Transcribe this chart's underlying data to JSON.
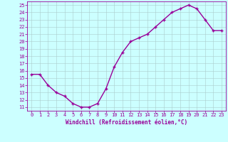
{
  "x": [
    0,
    1,
    2,
    3,
    4,
    5,
    6,
    7,
    8,
    9,
    10,
    11,
    12,
    13,
    14,
    15,
    16,
    17,
    18,
    19,
    20,
    21,
    22,
    23
  ],
  "y": [
    15.5,
    15.5,
    14,
    13,
    12.5,
    11.5,
    11,
    11,
    11.5,
    13.5,
    16.5,
    18.5,
    20,
    20.5,
    21,
    22,
    23,
    24,
    24.5,
    25,
    24.5,
    23,
    21.5,
    21.5
  ],
  "line_color": "#990099",
  "marker": "+",
  "marker_size": 3.5,
  "bg_color": "#ccffff",
  "grid_color": "#aacccc",
  "xlabel": "Windchill (Refroidissement éolien,°C)",
  "xlim": [
    -0.5,
    23.5
  ],
  "ylim": [
    10.5,
    25.5
  ],
  "yticks": [
    11,
    12,
    13,
    14,
    15,
    16,
    17,
    18,
    19,
    20,
    21,
    22,
    23,
    24,
    25
  ],
  "xticks": [
    0,
    1,
    2,
    3,
    4,
    5,
    6,
    7,
    8,
    9,
    10,
    11,
    12,
    13,
    14,
    15,
    16,
    17,
    18,
    19,
    20,
    21,
    22,
    23
  ],
  "tick_color": "#990099",
  "label_color": "#990099",
  "line_width": 1.0,
  "tick_fontsize": 5.0,
  "xlabel_fontsize": 5.5
}
